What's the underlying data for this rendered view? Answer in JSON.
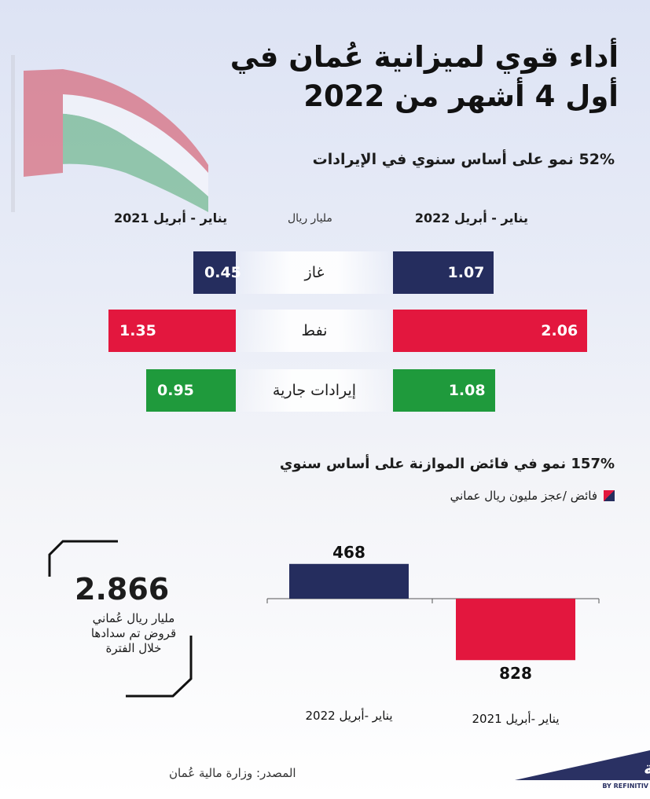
{
  "title": "أداء قوي لميزانية عُمان في أول 4 أشهر من 2022",
  "revenue_section": {
    "subtitle": "52% نمو على أساس سنوي في الإيرادات",
    "col_2022": "يناير - أبريل 2022",
    "col_2021": "يناير - أبريل 2021",
    "unit": "مليار ريال"
  },
  "balance_section": {
    "subtitle": "157% نمو في فائض الموازنة على أساس سنوي",
    "legend": "فائض /عجز مليون ريال عماني"
  },
  "loans": {
    "value": "2.866",
    "line1": "مليار ريال عُماني",
    "line2": "قروض تم سدادها",
    "line3": "خلال الفترة"
  },
  "source": "المصدر: وزارة مالية عُمان",
  "logo": {
    "main": "زاوية",
    "sub": "BY REFINITIV"
  },
  "colors": {
    "navy": "#252d5e",
    "red": "#e3173e",
    "green": "#1f9a3c"
  },
  "chart_data": [
    {
      "type": "bar",
      "categories": [
        "غاز",
        "نفط",
        "إيرادات جارية"
      ],
      "series": [
        {
          "name": "يناير - أبريل 2022",
          "values": [
            1.07,
            2.06,
            1.08
          ]
        },
        {
          "name": "يناير - أبريل 2021",
          "values": [
            0.45,
            1.35,
            0.95
          ]
        }
      ],
      "value_labels_2022": [
        "1.07",
        "2.06",
        "1.08"
      ],
      "value_labels_2021": [
        "0.45",
        "1.35",
        "0.95"
      ],
      "ylabel": "مليار ريال"
    },
    {
      "type": "bar",
      "categories": [
        "يناير -أبريل 2022",
        "يناير -أبريل 2021"
      ],
      "values": [
        468,
        -828
      ],
      "value_labels": [
        "468",
        "828"
      ]
    }
  ]
}
